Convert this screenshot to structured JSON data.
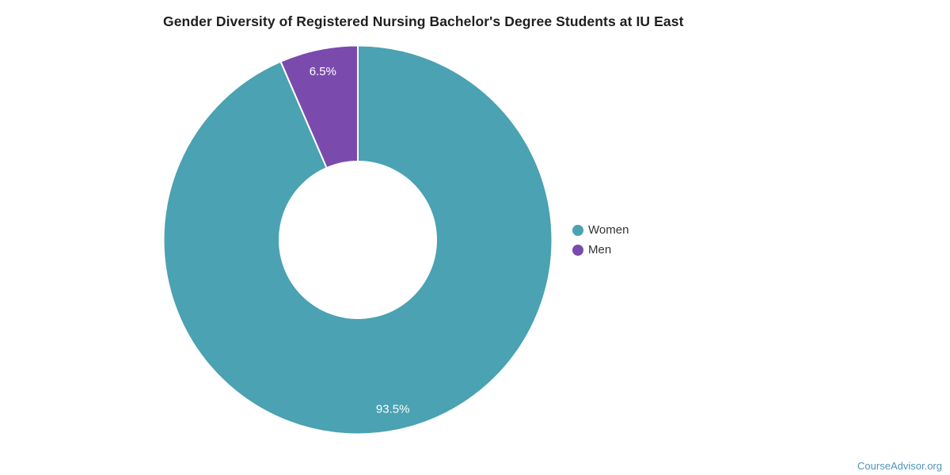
{
  "chart_data": {
    "type": "pie",
    "subtype": "donut",
    "title": "Gender Diversity of Registered Nursing Bachelor's Degree Students at IU East",
    "categories": [
      "Women",
      "Men"
    ],
    "values": [
      93.5,
      6.5
    ],
    "slice_labels": [
      "93.5%",
      "6.5%"
    ],
    "colors": [
      "#4AA2B2",
      "#7A4BAD"
    ],
    "slice_label_color": "#FFFFFF",
    "slice_border_color": "#FFFFFF",
    "start_angle_deg": 0,
    "direction": "clockwise",
    "legend_position": "right",
    "legend_text_color": "#333333",
    "title_color": "#1F1F1F"
  },
  "legend": {
    "items": [
      {
        "label": "Women",
        "color": "#4AA2B2"
      },
      {
        "label": "Men",
        "color": "#7A4BAD"
      }
    ]
  },
  "footer": {
    "watermark": "CourseAdvisor.org",
    "watermark_color": "#4E95BC"
  }
}
